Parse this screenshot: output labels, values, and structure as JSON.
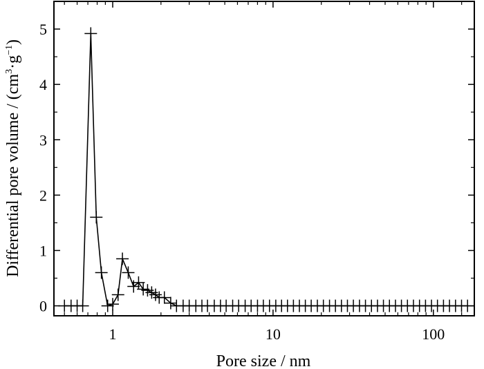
{
  "chart_data": {
    "type": "line",
    "title": "",
    "xlabel": "Pore size / nm",
    "ylabel_parts": {
      "base": "Differential pore volume / (cm",
      "sup1": "3",
      "mid": "·g",
      "sup2": "−1",
      "end": ")"
    },
    "x_scale": "log",
    "xlim": [
      0.43,
      180
    ],
    "ylim": [
      -0.18,
      5.5
    ],
    "x_ticks": [
      1,
      10,
      100
    ],
    "x_tick_labels": [
      "1",
      "10",
      "100"
    ],
    "y_ticks": [
      0,
      1,
      2,
      3,
      4,
      5
    ],
    "y_tick_labels": [
      "0",
      "1",
      "2",
      "3",
      "4",
      "5"
    ],
    "grid": false,
    "legend": "none",
    "marker": "plus",
    "color": "#000000",
    "series": [
      {
        "points": [
          [
            0.5,
            0
          ],
          [
            0.55,
            0
          ],
          [
            0.6,
            0
          ],
          [
            0.65,
            0
          ],
          [
            0.73,
            4.92
          ],
          [
            0.79,
            1.6
          ],
          [
            0.85,
            0.6
          ],
          [
            0.93,
            0
          ],
          [
            1.0,
            0.03
          ],
          [
            1.08,
            0.2
          ],
          [
            1.15,
            0.85
          ],
          [
            1.25,
            0.6
          ],
          [
            1.35,
            0.35
          ],
          [
            1.45,
            0.42
          ],
          [
            1.55,
            0.3
          ],
          [
            1.65,
            0.28
          ],
          [
            1.75,
            0.24
          ],
          [
            1.85,
            0.2
          ],
          [
            1.95,
            0.15
          ],
          [
            2.1,
            0.15
          ],
          [
            2.3,
            0.05
          ],
          [
            2.5,
            0
          ],
          [
            2.75,
            0
          ],
          [
            3.0,
            0
          ],
          [
            3.3,
            0
          ],
          [
            3.6,
            0
          ],
          [
            3.9,
            0
          ],
          [
            4.3,
            0
          ],
          [
            4.7,
            0
          ],
          [
            5.1,
            0
          ],
          [
            5.6,
            0
          ],
          [
            6.1,
            0
          ],
          [
            6.7,
            0
          ],
          [
            7.3,
            0
          ],
          [
            8.0,
            0
          ],
          [
            8.7,
            0
          ],
          [
            9.5,
            0
          ],
          [
            10.4,
            0
          ],
          [
            11.3,
            0
          ],
          [
            12.3,
            0
          ],
          [
            13.4,
            0
          ],
          [
            14.6,
            0
          ],
          [
            15.9,
            0
          ],
          [
            17.3,
            0
          ],
          [
            18.9,
            0
          ],
          [
            20.6,
            0
          ],
          [
            22.5,
            0
          ],
          [
            24.5,
            0
          ],
          [
            26.7,
            0
          ],
          [
            29.1,
            0
          ],
          [
            31.7,
            0
          ],
          [
            34.6,
            0
          ],
          [
            37.7,
            0
          ],
          [
            41.1,
            0
          ],
          [
            44.8,
            0
          ],
          [
            48.8,
            0
          ],
          [
            53.2,
            0
          ],
          [
            58.0,
            0
          ],
          [
            63.2,
            0
          ],
          [
            68.9,
            0
          ],
          [
            75.1,
            0
          ],
          [
            81.9,
            0
          ],
          [
            89.3,
            0
          ],
          [
            97.3,
            0
          ],
          [
            106,
            0
          ],
          [
            115.6,
            0
          ],
          [
            126,
            0
          ],
          [
            137.4,
            0
          ],
          [
            149.8,
            0
          ],
          [
            163.3,
            0
          ]
        ]
      }
    ]
  }
}
